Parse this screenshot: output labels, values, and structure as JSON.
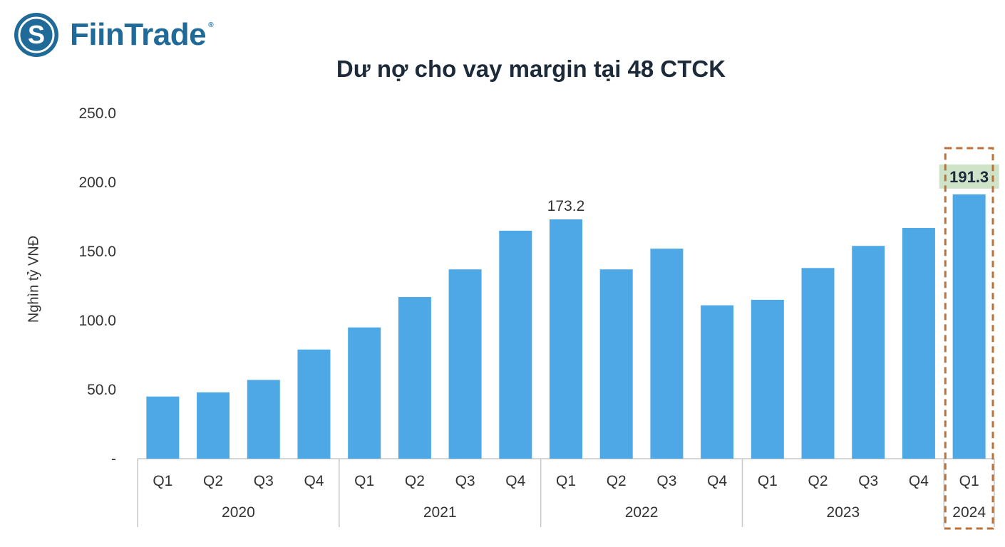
{
  "brand": {
    "name": "FiinTrade",
    "reg": "®",
    "color": "#1f6a98"
  },
  "chart_data": {
    "type": "bar",
    "title": "Dư nợ cho vay margin tại 48 CTCK",
    "ylabel": "Nghìn tỷ VNĐ",
    "xlabel": "",
    "ylim": [
      0,
      250
    ],
    "yticks": [
      {
        "value": 0,
        "label": "-"
      },
      {
        "value": 50,
        "label": "50.0"
      },
      {
        "value": 100,
        "label": "100.0"
      },
      {
        "value": 150,
        "label": "150.0"
      },
      {
        "value": 200,
        "label": "200.0"
      },
      {
        "value": 250,
        "label": "250.0"
      }
    ],
    "categories": [
      "Q1",
      "Q2",
      "Q3",
      "Q4",
      "Q1",
      "Q2",
      "Q3",
      "Q4",
      "Q1",
      "Q2",
      "Q3",
      "Q4",
      "Q1",
      "Q2",
      "Q3",
      "Q4",
      "Q1"
    ],
    "groups": [
      {
        "label": "2020",
        "count": 4
      },
      {
        "label": "2021",
        "count": 4
      },
      {
        "label": "2022",
        "count": 4
      },
      {
        "label": "2023",
        "count": 4
      },
      {
        "label": "2024",
        "count": 1
      }
    ],
    "values": [
      45,
      48,
      57,
      79,
      95,
      117,
      137,
      165,
      173.2,
      137,
      152,
      111,
      115,
      138,
      154,
      167,
      191.3
    ],
    "data_labels": [
      {
        "index": 8,
        "text": "173.2",
        "highlight": false
      },
      {
        "index": 16,
        "text": "191.3",
        "highlight": true
      }
    ],
    "bar_color": "#4fa8e6",
    "highlight_fill": "#cfe3c8",
    "highlight_box_color": "#b9733a",
    "grid": false,
    "legend": "none"
  }
}
